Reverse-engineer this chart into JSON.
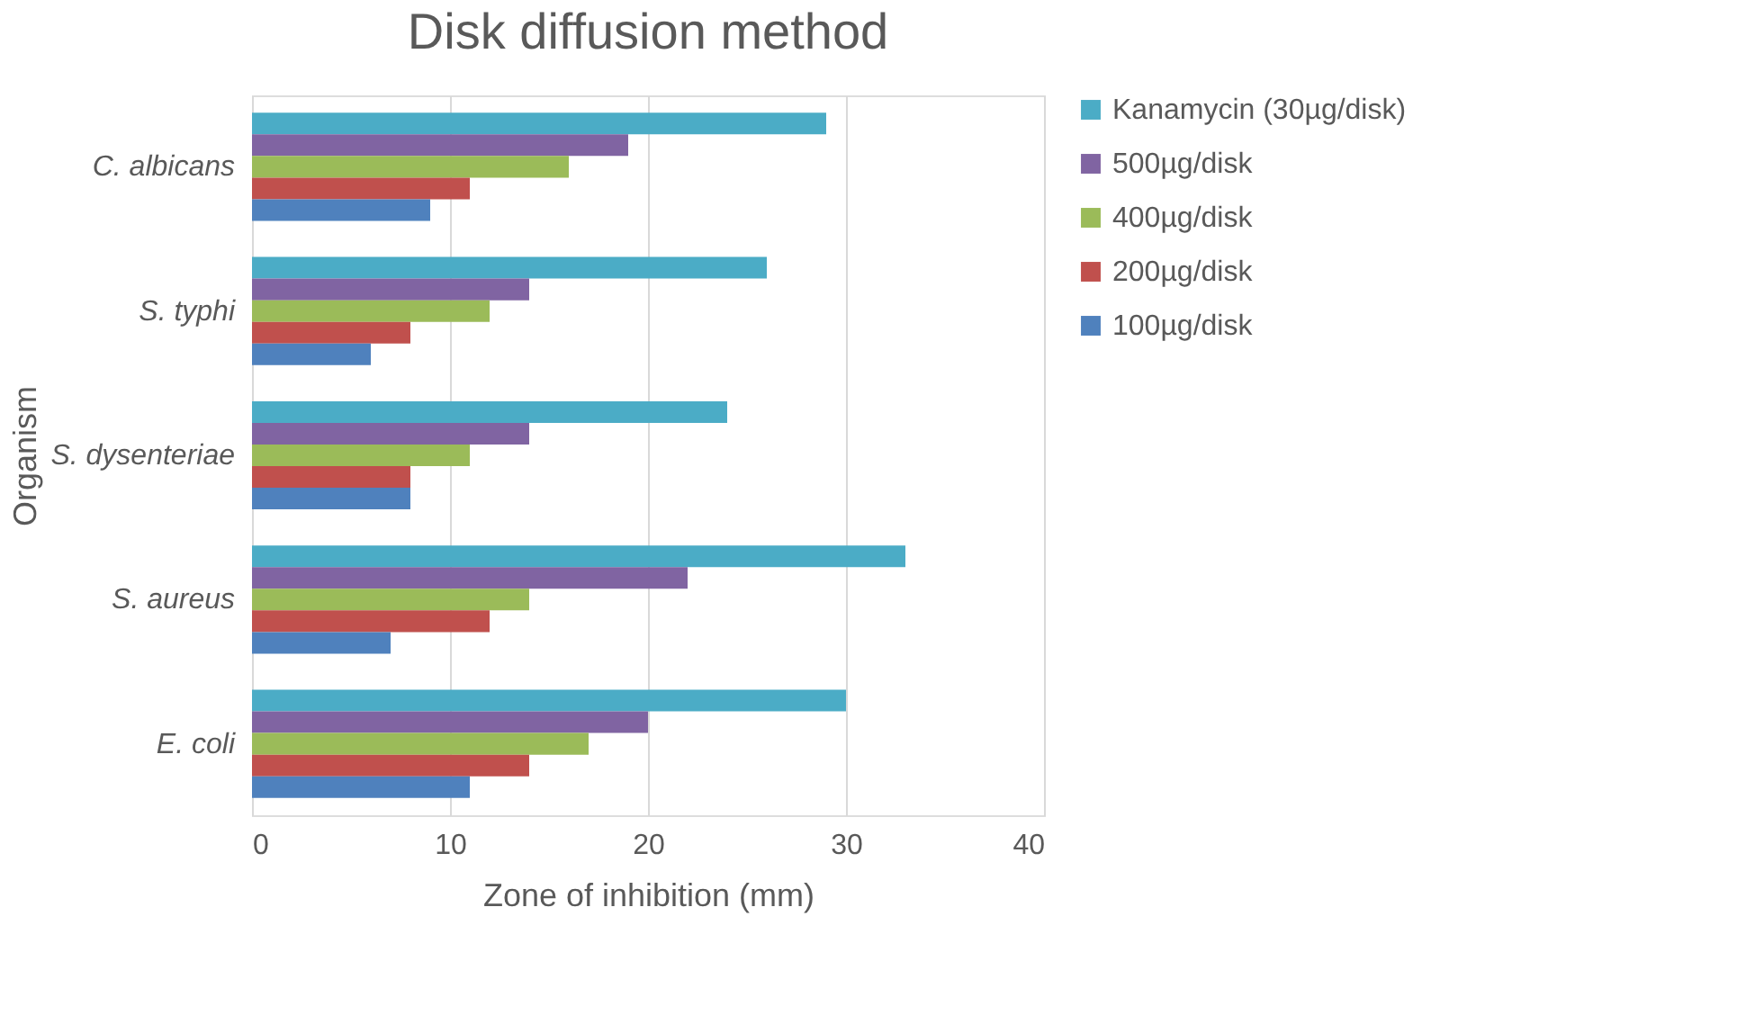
{
  "chart_data": {
    "type": "bar",
    "orientation": "horizontal",
    "title": "Disk diffusion method",
    "xlabel": "Zone of inhibition (mm)",
    "ylabel": "Organism",
    "categories": [
      "C. albicans",
      "S. typhi",
      "S. dysenteriae",
      "S. aureus",
      "E. coli"
    ],
    "series": [
      {
        "name": "Kanamycin (30µg/disk)",
        "color": "#4bacc6",
        "values": [
          29,
          26,
          24,
          33,
          30
        ]
      },
      {
        "name": "500µg/disk",
        "color": "#8064a2",
        "values": [
          19,
          14,
          14,
          22,
          20
        ]
      },
      {
        "name": "400µg/disk",
        "color": "#9bbb59",
        "values": [
          16,
          12,
          11,
          14,
          17
        ]
      },
      {
        "name": "200µg/disk",
        "color": "#c0504d",
        "values": [
          11,
          8,
          8,
          12,
          14
        ]
      },
      {
        "name": "100µg/disk",
        "color": "#4f81bd",
        "values": [
          9,
          6,
          8,
          7,
          11
        ]
      }
    ],
    "xlim": [
      0,
      40
    ],
    "xticks": [
      0,
      10,
      20,
      30,
      40
    ],
    "grid": "x",
    "legend": "right"
  }
}
